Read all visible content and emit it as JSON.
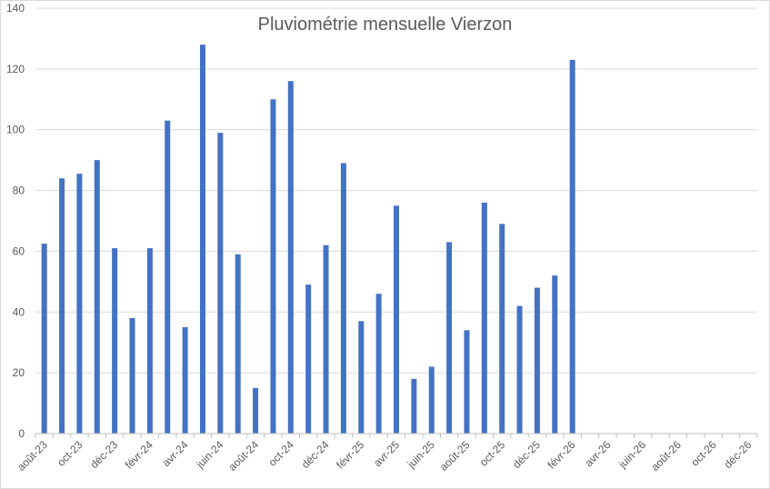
{
  "chart_data": {
    "type": "bar",
    "title": "Pluviométrie mensuelle Vierzon",
    "xlabel": "",
    "ylabel": "",
    "ylim": [
      0,
      140
    ],
    "yticks": [
      0,
      20,
      40,
      60,
      80,
      100,
      120,
      140
    ],
    "grid": "horizontal",
    "legend": "none",
    "bar_color": "#4472c4",
    "categories": [
      "août-23",
      "sept-23",
      "oct-23",
      "nov-23",
      "déc-23",
      "janv-24",
      "févr-24",
      "mars-24",
      "avr-24",
      "mai-24",
      "juin-24",
      "juil-24",
      "août-24",
      "sept-24",
      "oct-24",
      "nov-24",
      "déc-24",
      "janv-25",
      "févr-25",
      "mars-25",
      "avr-25",
      "mai-25",
      "juin-25",
      "juil-25",
      "août-25",
      "sept-25",
      "oct-25",
      "nov-25",
      "déc-25",
      "janv-26",
      "févr-26",
      "mars-26",
      "avr-26",
      "mai-26",
      "juin-26",
      "juil-26",
      "août-26",
      "sept-26",
      "oct-26",
      "nov-26",
      "déc-26"
    ],
    "values": [
      62.5,
      84,
      85.5,
      90,
      61,
      38,
      61,
      103,
      35,
      128,
      99,
      59,
      15,
      110,
      116,
      49,
      62,
      89,
      37,
      46,
      75,
      18,
      22,
      63,
      34,
      76,
      69,
      42,
      48,
      52,
      123,
      null,
      null,
      null,
      null,
      null,
      null,
      null,
      null,
      null,
      null
    ],
    "tick_labels": [
      "août-23",
      "oct-23",
      "déc-23",
      "févr-24",
      "avr-24",
      "juin-24",
      "août-24",
      "oct-24",
      "déc-24",
      "févr-25",
      "avr-25",
      "juin-25",
      "août-25",
      "oct-25",
      "déc-25",
      "févr-26",
      "avr-26",
      "juin-26",
      "août-26",
      "oct-26",
      "déc-26"
    ]
  }
}
